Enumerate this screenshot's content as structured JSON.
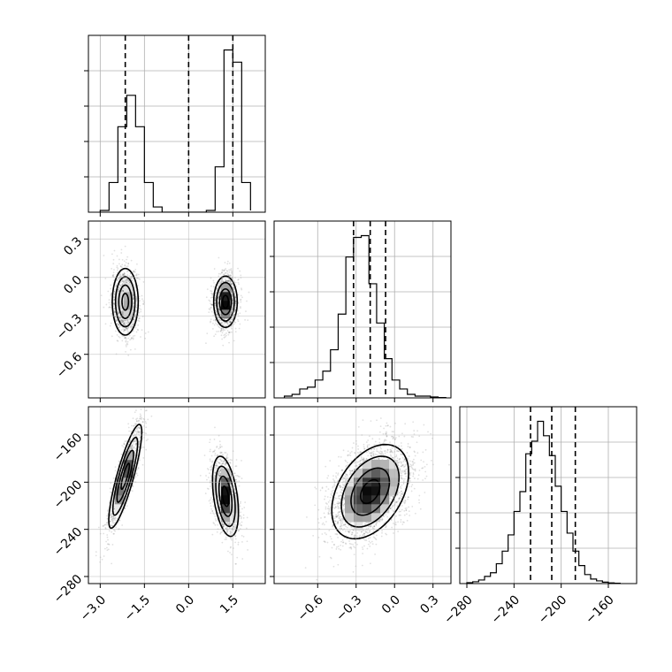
{
  "chart_data": {
    "type": "corner",
    "grid": true,
    "parameters": [
      {
        "name": "",
        "range": [
          -3.4,
          2.6
        ],
        "ticks": [
          -3.0,
          -1.5,
          0.0,
          1.5
        ],
        "tick_labels": [
          "−3.0",
          "−1.5",
          "0.0",
          "1.5"
        ]
      },
      {
        "name": "",
        "range": [
          -0.94,
          0.44
        ],
        "ticks": [
          -0.6,
          -0.3,
          0.0,
          0.3
        ],
        "tick_labels": [
          "−0.6",
          "−0.3",
          "0.0",
          "0.3"
        ]
      },
      {
        "name": "",
        "range": [
          -286,
          -136
        ],
        "ticks": [
          -280,
          -240,
          -200,
          -160
        ],
        "tick_labels": [
          "−280",
          "−240",
          "−200",
          "−160"
        ]
      }
    ],
    "histograms": [
      {
        "param": 0,
        "bin_edges": [
          -3.0,
          -2.7,
          -2.4,
          -2.1,
          -1.8,
          -1.5,
          -1.2,
          -0.9,
          -0.6,
          -0.3,
          0.0,
          0.3,
          0.6,
          0.9,
          1.2,
          1.5,
          1.8,
          2.1
        ],
        "counts": [
          0.01,
          0.17,
          0.49,
          0.67,
          0.49,
          0.17,
          0.03,
          0,
          0,
          0,
          0,
          0,
          0.01,
          0.26,
          0.93,
          0.86,
          0.17,
          0.01
        ],
        "quantiles": [
          -2.15,
          0.0,
          1.5
        ]
      },
      {
        "param": 1,
        "bin_edges": [
          -0.86,
          -0.8,
          -0.74,
          -0.68,
          -0.62,
          -0.56,
          -0.5,
          -0.44,
          -0.38,
          -0.32,
          -0.26,
          -0.2,
          -0.14,
          -0.08,
          -0.02,
          0.04,
          0.1,
          0.16,
          0.22,
          0.28,
          0.34,
          0.4
        ],
        "counts": [
          0.01,
          0.02,
          0.05,
          0.06,
          0.1,
          0.15,
          0.27,
          0.47,
          0.79,
          0.9,
          0.91,
          0.64,
          0.42,
          0.22,
          0.1,
          0.05,
          0.02,
          0.01,
          0.01,
          0.005,
          0.002
        ],
        "quantiles": [
          -0.32,
          -0.19,
          -0.07
        ]
      },
      {
        "param": 2,
        "bin_edges": [
          -280,
          -275,
          -270,
          -265,
          -260,
          -255,
          -250,
          -245,
          -240,
          -235,
          -230,
          -225,
          -220,
          -215,
          -210,
          -205,
          -200,
          -195,
          -190,
          -185,
          -180,
          -175,
          -170,
          -165,
          -160,
          -155,
          -150
        ],
        "counts": [
          0.005,
          0.01,
          0.02,
          0.04,
          0.06,
          0.11,
          0.18,
          0.27,
          0.4,
          0.51,
          0.72,
          0.79,
          0.9,
          0.82,
          0.71,
          0.54,
          0.4,
          0.28,
          0.18,
          0.1,
          0.05,
          0.025,
          0.015,
          0.008,
          0.004,
          0.002
        ],
        "quantiles": [
          -226,
          -208,
          -188
        ]
      }
    ],
    "scatter_panels": [
      {
        "x_param": 0,
        "y_param": 1,
        "modes": [
          {
            "mean": [
              -2.15,
              -0.19
            ],
            "std": [
              0.22,
              0.13
            ],
            "corr": 0.0,
            "weight": 0.45
          },
          {
            "mean": [
              1.25,
              -0.19
            ],
            "std": [
              0.2,
              0.1
            ],
            "corr": 0.0,
            "weight": 0.55
          }
        ]
      },
      {
        "x_param": 0,
        "y_param": 2,
        "modes": [
          {
            "mean": [
              -2.15,
              -195
            ],
            "std": [
              0.28,
              22
            ],
            "corr": 0.85,
            "weight": 0.45
          },
          {
            "mean": [
              1.25,
              -212
            ],
            "std": [
              0.22,
              17
            ],
            "corr": -0.4,
            "weight": 0.55
          }
        ]
      },
      {
        "x_param": 1,
        "y_param": 2,
        "modes": [
          {
            "mean": [
              -0.19,
              -208
            ],
            "std": [
              0.15,
              20
            ],
            "corr": 0.4,
            "weight": 1.0
          }
        ]
      }
    ],
    "contour_levels_sigma": [
      0.5,
      1.0,
      1.5,
      2.0
    ]
  }
}
